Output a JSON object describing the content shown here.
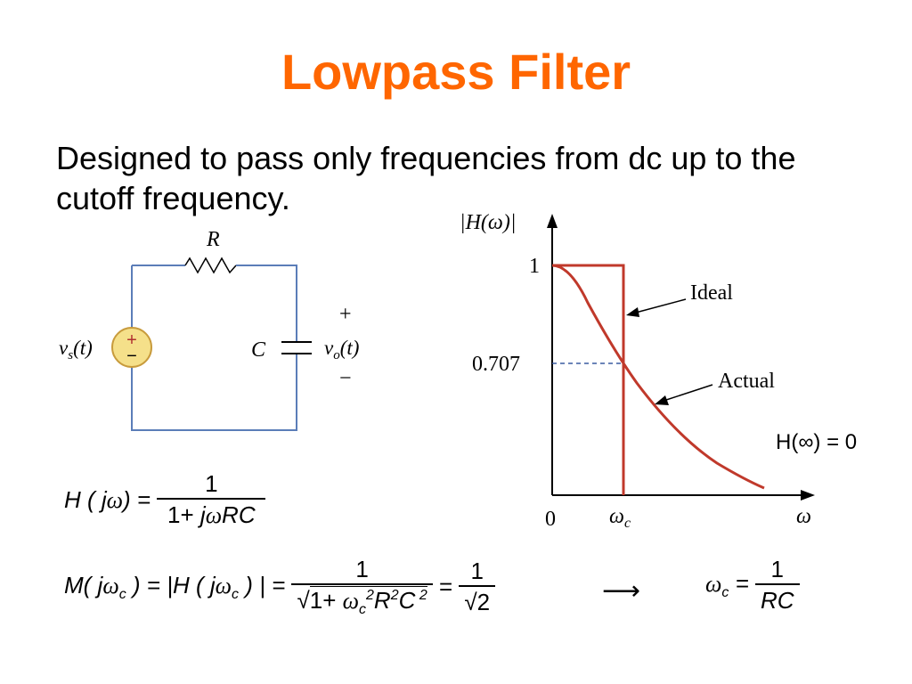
{
  "slide": {
    "title": "Lowpass Filter",
    "text": "Designed to pass only frequencies from dc up to the cutoff frequency.",
    "title_color": "#FF6600"
  },
  "circuit": {
    "resistor_label": "R",
    "capacitor_label": "C",
    "source_label": "v_s(t)",
    "output_label": "v_o(t)",
    "plus": "+",
    "minus": "−",
    "source_plus": "+",
    "source_minus": "−",
    "wire_color": "#5B7DB8",
    "source_fill": "#F5E08A"
  },
  "plot": {
    "y_axis_label": "|H(ω)|",
    "x_axis_label": "ω",
    "y_tick_1": "1",
    "y_tick_0707": "0.707",
    "x_tick_0": "0",
    "x_tick_wc": "ω_c",
    "ideal_label": "Ideal",
    "actual_label": "Actual",
    "h_infinity": "H(∞) = 0",
    "curve_color": "#C0392B",
    "cutoff_value": 0.707
  },
  "equations": {
    "transfer_lhs": "H(jω) =",
    "transfer_num": "1",
    "transfer_den": "1+ jωRC",
    "magnitude_lhs": "M(jω_c) = |H(jω_c)| =",
    "magnitude_num": "1",
    "magnitude_den": "√(1+ω_c²R²C²)",
    "equals_2": "=",
    "rhs_num": "1",
    "rhs_den": "√2",
    "arrow": "⟶",
    "result_lhs": "ω_c =",
    "result_num": "1",
    "result_den": "RC"
  }
}
